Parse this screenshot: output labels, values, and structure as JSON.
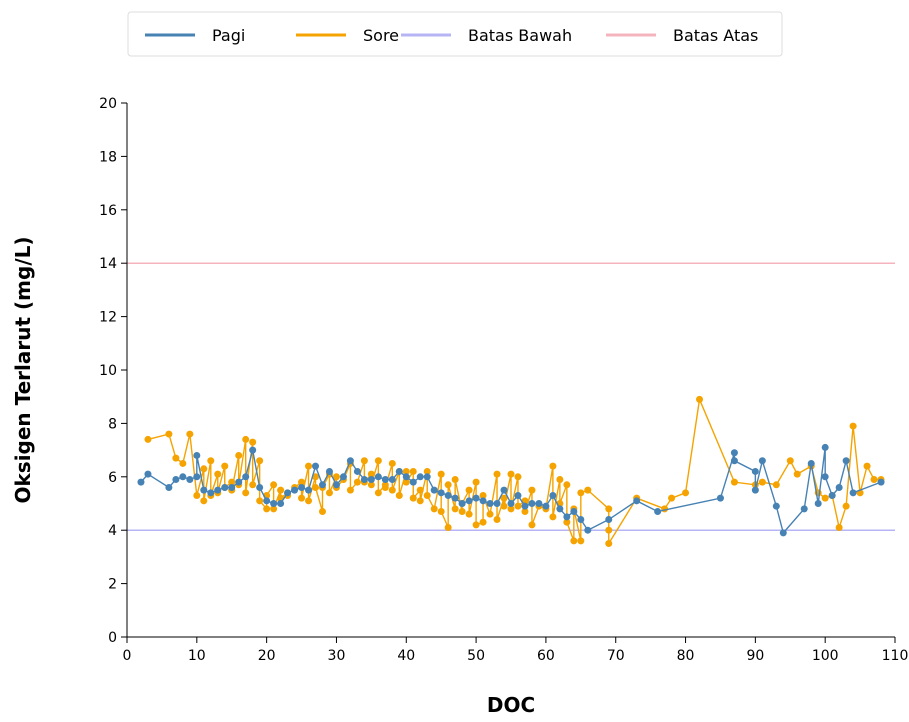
{
  "chart_data": {
    "type": "line",
    "xlabel": "DOC",
    "ylabel": "Oksigen Terlarut (mg/L)",
    "xlim": [
      0,
      110
    ],
    "ylim": [
      0,
      20
    ],
    "xticks": [
      0,
      10,
      20,
      30,
      40,
      50,
      60,
      70,
      80,
      90,
      100,
      110
    ],
    "yticks": [
      0,
      2,
      4,
      6,
      8,
      10,
      12,
      14,
      16,
      18,
      20
    ],
    "grid": false,
    "legend": "top",
    "series": [
      {
        "name": "Pagi",
        "color": "#4682b4",
        "markers": true,
        "points": [
          [
            2,
            5.8
          ],
          [
            3,
            6.1
          ],
          [
            6,
            5.6
          ],
          [
            7,
            5.9
          ],
          [
            8,
            6.0
          ],
          [
            9,
            5.9
          ],
          [
            10,
            6.0
          ],
          [
            10,
            6.8
          ],
          [
            11,
            5.5
          ],
          [
            12,
            5.4
          ],
          [
            13,
            5.5
          ],
          [
            14,
            5.6
          ],
          [
            15,
            5.6
          ],
          [
            16,
            5.8
          ],
          [
            17,
            6.0
          ],
          [
            18,
            7.0
          ],
          [
            19,
            5.6
          ],
          [
            20,
            5.1
          ],
          [
            21,
            5.0
          ],
          [
            22,
            5.0
          ],
          [
            23,
            5.4
          ],
          [
            24,
            5.5
          ],
          [
            25,
            5.6
          ],
          [
            26,
            5.5
          ],
          [
            27,
            6.4
          ],
          [
            28,
            5.7
          ],
          [
            29,
            6.2
          ],
          [
            30,
            5.7
          ],
          [
            31,
            6.0
          ],
          [
            32,
            6.6
          ],
          [
            33,
            6.2
          ],
          [
            34,
            5.9
          ],
          [
            35,
            5.9
          ],
          [
            36,
            6.0
          ],
          [
            37,
            5.9
          ],
          [
            38,
            5.9
          ],
          [
            39,
            6.2
          ],
          [
            40,
            6.0
          ],
          [
            41,
            5.8
          ],
          [
            42,
            6.0
          ],
          [
            43,
            6.0
          ],
          [
            44,
            5.5
          ],
          [
            45,
            5.4
          ],
          [
            46,
            5.3
          ],
          [
            47,
            5.2
          ],
          [
            48,
            5.0
          ],
          [
            49,
            5.1
          ],
          [
            50,
            5.2
          ],
          [
            51,
            5.1
          ],
          [
            52,
            5.0
          ],
          [
            53,
            5.0
          ],
          [
            54,
            5.5
          ],
          [
            55,
            5.0
          ],
          [
            56,
            5.3
          ],
          [
            57,
            4.9
          ],
          [
            58,
            5.0
          ],
          [
            59,
            5.0
          ],
          [
            60,
            4.9
          ],
          [
            61,
            5.3
          ],
          [
            62,
            4.8
          ],
          [
            63,
            4.5
          ],
          [
            64,
            4.7
          ],
          [
            65,
            4.4
          ],
          [
            66,
            4.0
          ],
          [
            69,
            4.4
          ],
          [
            73,
            5.1
          ],
          [
            76,
            4.7
          ],
          [
            85,
            5.2
          ],
          [
            87,
            6.9
          ],
          [
            87,
            6.6
          ],
          [
            90,
            6.2
          ],
          [
            90,
            5.5
          ],
          [
            91,
            6.6
          ],
          [
            93,
            4.9
          ],
          [
            94,
            3.9
          ],
          [
            97,
            4.8
          ],
          [
            98,
            6.5
          ],
          [
            99,
            5.0
          ],
          [
            100,
            7.1
          ],
          [
            100,
            6.0
          ],
          [
            101,
            5.3
          ],
          [
            102,
            5.6
          ],
          [
            103,
            6.6
          ],
          [
            104,
            5.4
          ],
          [
            108,
            5.8
          ]
        ]
      },
      {
        "name": "Sore",
        "color": "#f5a300",
        "markers": true,
        "points": [
          [
            3,
            7.4
          ],
          [
            6,
            7.6
          ],
          [
            7,
            6.7
          ],
          [
            8,
            6.5
          ],
          [
            9,
            7.6
          ],
          [
            10,
            5.3
          ],
          [
            11,
            6.3
          ],
          [
            11,
            5.1
          ],
          [
            12,
            6.6
          ],
          [
            12,
            5.3
          ],
          [
            13,
            6.1
          ],
          [
            13,
            5.4
          ],
          [
            14,
            6.4
          ],
          [
            14,
            5.6
          ],
          [
            15,
            5.8
          ],
          [
            15,
            5.5
          ],
          [
            16,
            6.8
          ],
          [
            16,
            5.7
          ],
          [
            17,
            7.4
          ],
          [
            17,
            5.4
          ],
          [
            18,
            7.3
          ],
          [
            18,
            5.7
          ],
          [
            19,
            6.6
          ],
          [
            19,
            5.1
          ],
          [
            20,
            4.8
          ],
          [
            20,
            5.3
          ],
          [
            21,
            5.7
          ],
          [
            21,
            4.8
          ],
          [
            22,
            5.5
          ],
          [
            22,
            5.2
          ],
          [
            23,
            5.4
          ],
          [
            23,
            5.3
          ],
          [
            24,
            5.6
          ],
          [
            25,
            5.8
          ],
          [
            25,
            5.2
          ],
          [
            26,
            6.4
          ],
          [
            26,
            5.1
          ],
          [
            27,
            6.0
          ],
          [
            27,
            5.6
          ],
          [
            28,
            4.7
          ],
          [
            28,
            5.6
          ],
          [
            29,
            6.1
          ],
          [
            29,
            5.4
          ],
          [
            30,
            6.0
          ],
          [
            30,
            5.6
          ],
          [
            31,
            5.9
          ],
          [
            32,
            6.5
          ],
          [
            32,
            5.5
          ],
          [
            33,
            5.8
          ],
          [
            34,
            6.6
          ],
          [
            34,
            5.8
          ],
          [
            35,
            6.1
          ],
          [
            35,
            5.7
          ],
          [
            36,
            6.6
          ],
          [
            36,
            5.4
          ],
          [
            37,
            5.7
          ],
          [
            37,
            5.6
          ],
          [
            38,
            6.5
          ],
          [
            38,
            5.5
          ],
          [
            39,
            6.2
          ],
          [
            39,
            5.3
          ],
          [
            40,
            6.2
          ],
          [
            40,
            5.8
          ],
          [
            41,
            6.2
          ],
          [
            41,
            5.2
          ],
          [
            42,
            5.5
          ],
          [
            42,
            5.1
          ],
          [
            43,
            6.2
          ],
          [
            43,
            5.3
          ],
          [
            44,
            4.8
          ],
          [
            45,
            6.1
          ],
          [
            45,
            4.7
          ],
          [
            46,
            4.1
          ],
          [
            46,
            5.7
          ],
          [
            47,
            4.8
          ],
          [
            47,
            5.9
          ],
          [
            48,
            4.7
          ],
          [
            48,
            5.0
          ],
          [
            49,
            5.5
          ],
          [
            49,
            4.6
          ],
          [
            50,
            5.8
          ],
          [
            50,
            4.2
          ],
          [
            51,
            4.3
          ],
          [
            51,
            5.3
          ],
          [
            52,
            4.6
          ],
          [
            53,
            6.1
          ],
          [
            53,
            4.4
          ],
          [
            54,
            5.2
          ],
          [
            54,
            4.9
          ],
          [
            55,
            6.1
          ],
          [
            55,
            4.8
          ],
          [
            56,
            6.0
          ],
          [
            56,
            4.9
          ],
          [
            57,
            5.1
          ],
          [
            57,
            4.7
          ],
          [
            58,
            5.5
          ],
          [
            58,
            4.2
          ],
          [
            59,
            4.9
          ],
          [
            60,
            4.8
          ],
          [
            61,
            6.4
          ],
          [
            61,
            4.5
          ],
          [
            62,
            5.9
          ],
          [
            62,
            5.0
          ],
          [
            63,
            5.7
          ],
          [
            63,
            4.3
          ],
          [
            64,
            3.6
          ],
          [
            64,
            4.8
          ],
          [
            65,
            3.6
          ],
          [
            65,
            5.4
          ],
          [
            66,
            5.5
          ],
          [
            69,
            4.8
          ],
          [
            69,
            4.0
          ],
          [
            69,
            3.5
          ],
          [
            73,
            5.2
          ],
          [
            77,
            4.8
          ],
          [
            78,
            5.2
          ],
          [
            80,
            5.4
          ],
          [
            82,
            8.9
          ],
          [
            87,
            5.8
          ],
          [
            90,
            5.7
          ],
          [
            91,
            5.8
          ],
          [
            93,
            5.7
          ],
          [
            95,
            6.6
          ],
          [
            96,
            6.1
          ],
          [
            98,
            6.4
          ],
          [
            99,
            5.4
          ],
          [
            100,
            5.2
          ],
          [
            101,
            5.3
          ],
          [
            102,
            4.1
          ],
          [
            103,
            4.9
          ],
          [
            104,
            7.9
          ],
          [
            105,
            5.4
          ],
          [
            106,
            6.4
          ],
          [
            107,
            5.9
          ],
          [
            108,
            5.9
          ]
        ]
      },
      {
        "name": "Batas Bawah",
        "color": "#b7b4f5",
        "markers": false,
        "points": [
          [
            0,
            4
          ],
          [
            110,
            4
          ]
        ]
      },
      {
        "name": "Batas Atas",
        "color": "#f5b4bd",
        "markers": false,
        "points": [
          [
            0,
            14
          ],
          [
            110,
            14
          ]
        ]
      }
    ]
  }
}
